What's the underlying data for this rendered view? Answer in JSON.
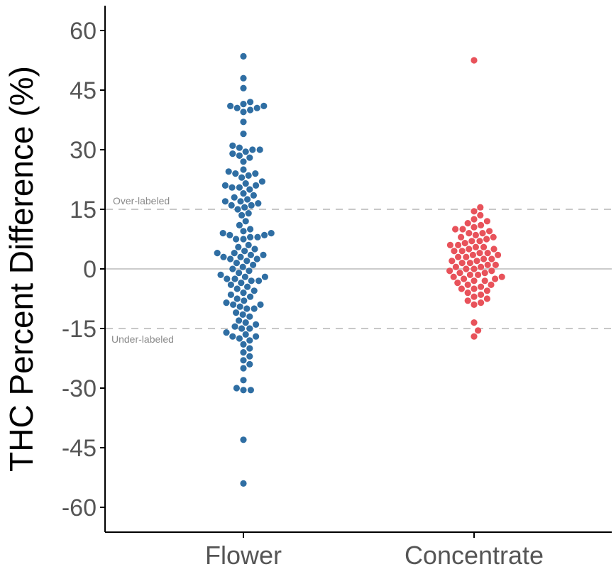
{
  "chart_data": {
    "type": "scatter",
    "subtype": "beeswarm",
    "title": "",
    "xlabel": "",
    "ylabel": "THC Percent Difference (%)",
    "ylim": [
      -65,
      65
    ],
    "yticks": [
      60,
      45,
      30,
      15,
      0,
      -15,
      -30,
      -45,
      -60
    ],
    "categories": [
      "Flower",
      "Concentrate"
    ],
    "grid": false,
    "reference_lines": [
      {
        "value": 0,
        "style": "solid",
        "color": "#cccccc",
        "label": ""
      },
      {
        "value": 15,
        "style": "dashed",
        "color": "#c8c8c8",
        "label": "Over-labeled"
      },
      {
        "value": -15,
        "style": "dashed",
        "color": "#c8c8c8",
        "label": "Under-labeled"
      }
    ],
    "series": [
      {
        "name": "Flower",
        "color": "#2f6ea3",
        "values": [
          53.5,
          48,
          45.5,
          42,
          41.5,
          41,
          41,
          40.5,
          40.5,
          40,
          39.5,
          37,
          34,
          31,
          30.5,
          30,
          30,
          29.5,
          29,
          28.5,
          28,
          27,
          25,
          24.5,
          24,
          24,
          23.5,
          23,
          22,
          21.5,
          21,
          21,
          20.5,
          20.5,
          20,
          19,
          18.5,
          18,
          17.5,
          17,
          17,
          16.5,
          16,
          16,
          15.5,
          15,
          14,
          13.5,
          12,
          11,
          10,
          9.5,
          9,
          9,
          8.5,
          8.5,
          8,
          8,
          7.5,
          7.5,
          6,
          5.5,
          5,
          4.5,
          4,
          4,
          3.5,
          3.5,
          3,
          3,
          2.5,
          2.5,
          2,
          1.5,
          1,
          0.5,
          0,
          -0.5,
          -1,
          -1.5,
          -2,
          -2,
          -2.5,
          -2.5,
          -3,
          -3,
          -3.5,
          -4,
          -4.5,
          -5,
          -5.5,
          -6,
          -6.5,
          -7,
          -7.5,
          -8,
          -8.5,
          -9,
          -9,
          -9.5,
          -10,
          -10,
          -11,
          -11.5,
          -12,
          -13,
          -13.5,
          -14,
          -14.5,
          -15,
          -15,
          -16,
          -16.5,
          -17,
          -17,
          -17.5,
          -18,
          -19,
          -20,
          -21,
          -22,
          -23,
          -24,
          -25,
          -28,
          -30,
          -30.5,
          -30.5,
          -43,
          -54
        ]
      },
      {
        "name": "Concentrate",
        "color": "#e8525a",
        "values": [
          52.5,
          15.5,
          14.5,
          13.5,
          12.5,
          12,
          11.5,
          11,
          10.5,
          10,
          10,
          9.5,
          9,
          9,
          8.5,
          8,
          8,
          7.5,
          7,
          7,
          6.5,
          6,
          6,
          5.5,
          5.5,
          5,
          5,
          4.5,
          4.5,
          4,
          4,
          3.5,
          3.5,
          3,
          3,
          2.5,
          2.5,
          2,
          2,
          1.5,
          1.5,
          1,
          1,
          0.5,
          0.5,
          0,
          0,
          -0.5,
          -0.5,
          -1,
          -1,
          -1.5,
          -1.5,
          -2,
          -2,
          -2.5,
          -2.5,
          -3,
          -3,
          -3.5,
          -4,
          -4,
          -4.5,
          -5,
          -5,
          -5.5,
          -6,
          -6.5,
          -7,
          -7.5,
          -8,
          -8.5,
          -9,
          -13.5,
          -15.5,
          -17
        ]
      }
    ]
  }
}
